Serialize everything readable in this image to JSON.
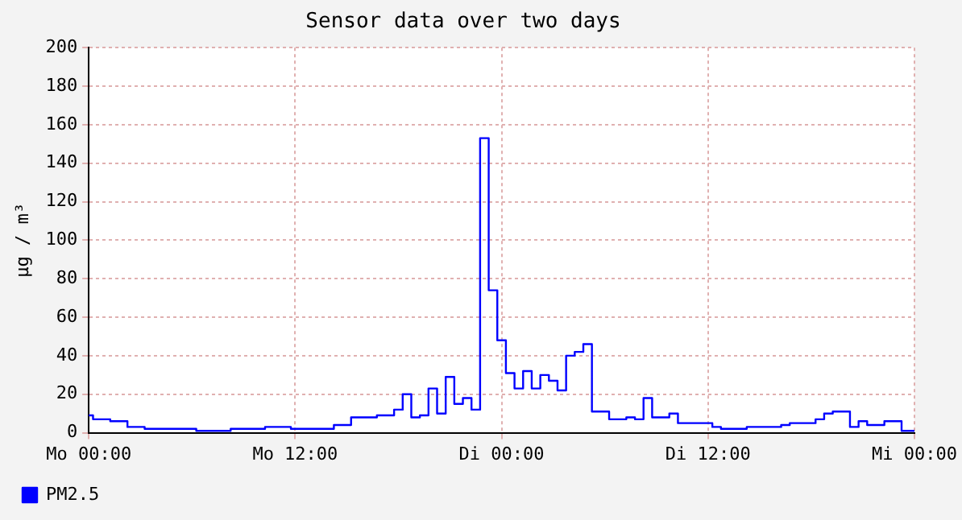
{
  "chart_data": {
    "type": "step",
    "title": "Sensor data over two days",
    "ylabel": "µg / m³",
    "categories": [
      "Mo 00:00",
      null,
      null,
      null,
      null,
      null,
      null,
      null,
      null,
      null,
      null,
      null,
      null,
      null,
      null,
      null,
      null,
      null,
      null,
      null,
      null,
      null,
      null,
      null,
      "Mo 12:00",
      null,
      null,
      null,
      null,
      null,
      null,
      null,
      null,
      null,
      null,
      null,
      null,
      null,
      null,
      null,
      null,
      null,
      null,
      null,
      null,
      null,
      null,
      null,
      "Di 00:00",
      null,
      null,
      null,
      null,
      null,
      null,
      null,
      null,
      null,
      null,
      null,
      null,
      null,
      null,
      null,
      null,
      null,
      null,
      null,
      null,
      null,
      null,
      null,
      "Di 12:00",
      null,
      null,
      null,
      null,
      null,
      null,
      null,
      null,
      null,
      null,
      null,
      null,
      null,
      null,
      null,
      null,
      null,
      null,
      null,
      null,
      null,
      null,
      null,
      "Mi 00:00"
    ],
    "ylim": [
      0,
      200
    ],
    "yticks": [
      0,
      20,
      40,
      60,
      80,
      100,
      120,
      140,
      160,
      180,
      200
    ],
    "grid": true,
    "legend": "bottom left",
    "marker": "none",
    "line_style": "solid",
    "series": [
      {
        "name": "PM2.5",
        "color": "#0000ff",
        "values": [
          9,
          7,
          7,
          6,
          6,
          3,
          3,
          2,
          2,
          2,
          2,
          2,
          2,
          1,
          1,
          1,
          1,
          2,
          2,
          2,
          2,
          3,
          3,
          3,
          2,
          2,
          2,
          2,
          2,
          4,
          4,
          8,
          8,
          8,
          9,
          9,
          12,
          20,
          8,
          9,
          23,
          10,
          29,
          15,
          18,
          12,
          153,
          74,
          48,
          31,
          23,
          32,
          23,
          30,
          27,
          22,
          40,
          42,
          46,
          11,
          11,
          7,
          7,
          8,
          7,
          18,
          8,
          8,
          10,
          5,
          5,
          5,
          5,
          3,
          2,
          2,
          2,
          3,
          3,
          3,
          3,
          4,
          5,
          5,
          5,
          7,
          10,
          11,
          11,
          3,
          6,
          4,
          4,
          6,
          6,
          1,
          1
        ]
      }
    ]
  }
}
